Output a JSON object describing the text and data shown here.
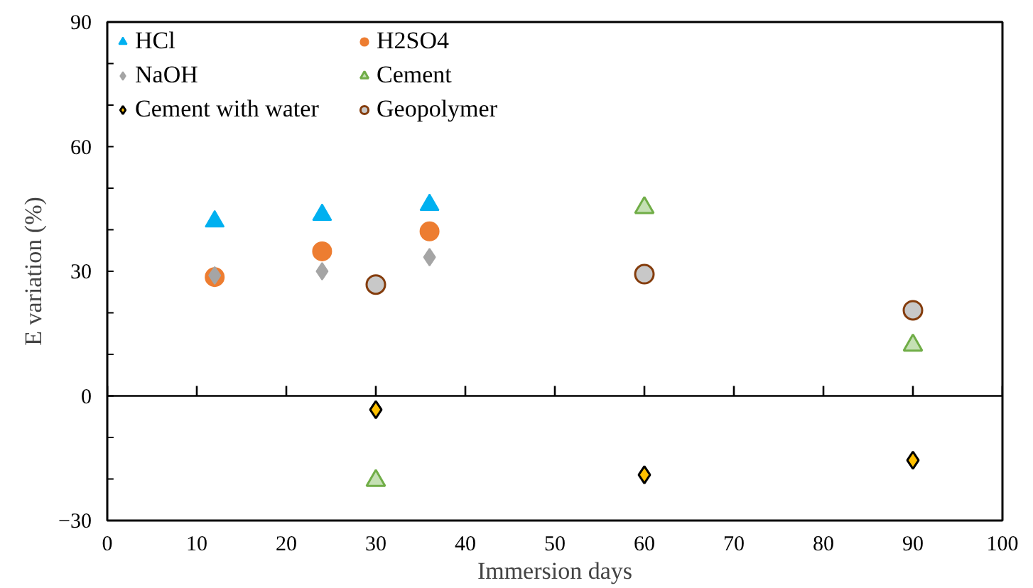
{
  "chart_data": {
    "type": "scatter",
    "xlabel": "Immersion days",
    "ylabel": "E variation (%)",
    "xlim": [
      0,
      100
    ],
    "xticks": [
      0,
      10,
      20,
      30,
      40,
      50,
      60,
      70,
      80,
      90,
      100
    ],
    "ylim": [
      -30,
      90
    ],
    "yticks": [
      -30,
      0,
      30,
      60,
      90
    ],
    "grid": false,
    "legend": "top left",
    "ref_lines": [
      {
        "axis": "y",
        "value": 0,
        "color": "#000000"
      }
    ],
    "series": [
      {
        "name": "HCl",
        "color": "#00b0f0",
        "marker": "triangle",
        "x": [
          12,
          24,
          36
        ],
        "values": [
          42,
          43.6,
          46
        ]
      },
      {
        "name": "H2SO4",
        "color": "#ed7d31",
        "marker": "circle",
        "x": [
          12,
          24,
          36
        ],
        "values": [
          28.6,
          34.8,
          39.6
        ]
      },
      {
        "name": "NaOH",
        "color": "#a5a5a5",
        "marker": "diamond",
        "x": [
          12,
          24,
          36
        ],
        "values": [
          29,
          30,
          33.4
        ]
      },
      {
        "name": "Cement",
        "color": "#70ad47",
        "marker": "triangle",
        "x": [
          30,
          60,
          90
        ],
        "values": [
          -20.4,
          45.3,
          12.2
        ]
      },
      {
        "name": "Cement with water",
        "color": "#ffc000",
        "marker": "diamond",
        "x": [
          30,
          60,
          90
        ],
        "values": [
          -3.3,
          -19,
          -15.5
        ]
      },
      {
        "name": "Geopolymer",
        "color": "#843c0c",
        "marker": "circle",
        "x": [
          30,
          60,
          90
        ],
        "values": [
          26.8,
          29.3,
          20.6
        ]
      }
    ]
  }
}
